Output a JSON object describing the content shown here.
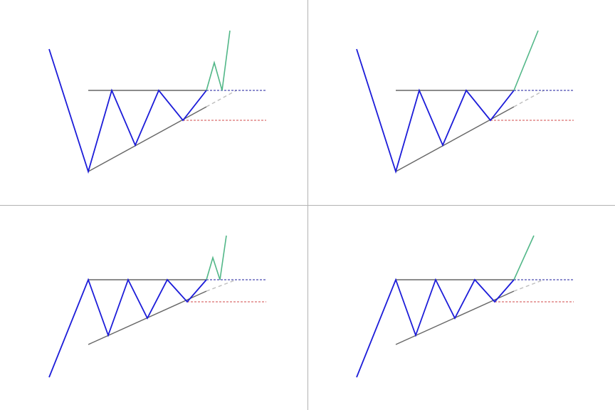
{
  "colors": {
    "background": "#ffffff",
    "panel_divider": "#b3b3b3",
    "price_path": "#1c1cd9",
    "breakout_path": "#52b788",
    "resistance_line": "#666666",
    "support_line": "#666666",
    "support_projection": "#bdbdbd",
    "breakout_level": "#1c1c9e",
    "stop_level": "#d04848"
  },
  "panels": [
    {
      "id": "top-left",
      "trend_before": "downtrend",
      "breakout_style": "retest",
      "path": [
        [
          69,
          69
        ],
        [
          124,
          241
        ],
        [
          157,
          127
        ],
        [
          190,
          204
        ],
        [
          223,
          127
        ],
        [
          257,
          169
        ],
        [
          290,
          127
        ]
      ],
      "breakout": [
        [
          290,
          127
        ],
        [
          301,
          88
        ],
        [
          312,
          127
        ],
        [
          323,
          43
        ]
      ],
      "resistance": [
        [
          124,
          127
        ],
        [
          290,
          127
        ]
      ],
      "support": [
        [
          124,
          241
        ],
        [
          290,
          150
        ]
      ],
      "support_projection": [
        [
          290,
          150
        ],
        [
          332,
          127
        ]
      ],
      "breakout_level": [
        [
          290,
          127
        ],
        [
          374,
          127
        ]
      ],
      "stop_level": [
        [
          257,
          169
        ],
        [
          374,
          169
        ]
      ]
    },
    {
      "id": "top-right",
      "trend_before": "downtrend",
      "breakout_style": "direct",
      "path": [
        [
          501,
          69
        ],
        [
          556,
          241
        ],
        [
          589,
          127
        ],
        [
          622,
          204
        ],
        [
          655,
          127
        ],
        [
          689,
          169
        ],
        [
          722,
          127
        ]
      ],
      "breakout": [
        [
          722,
          127
        ],
        [
          756,
          43
        ]
      ],
      "resistance": [
        [
          556,
          127
        ],
        [
          722,
          127
        ]
      ],
      "support": [
        [
          556,
          241
        ],
        [
          722,
          150
        ]
      ],
      "support_projection": [
        [
          722,
          150
        ],
        [
          764,
          127
        ]
      ],
      "breakout_level": [
        [
          722,
          127
        ],
        [
          806,
          127
        ]
      ],
      "stop_level": [
        [
          689,
          169
        ],
        [
          806,
          169
        ]
      ]
    },
    {
      "id": "bottom-left",
      "trend_before": "uptrend",
      "breakout_style": "retest",
      "path": [
        [
          69,
          530
        ],
        [
          124,
          393
        ],
        [
          152,
          471
        ],
        [
          180,
          393
        ],
        [
          207,
          447
        ],
        [
          235,
          393
        ],
        [
          263,
          424
        ],
        [
          290,
          393
        ]
      ],
      "breakout": [
        [
          290,
          393
        ],
        [
          299,
          362
        ],
        [
          309,
          393
        ],
        [
          318,
          331
        ]
      ],
      "resistance": [
        [
          124,
          393
        ],
        [
          290,
          393
        ]
      ],
      "support": [
        [
          124,
          484
        ],
        [
          290,
          409
        ]
      ],
      "support_projection": [
        [
          290,
          409
        ],
        [
          332,
          393
        ]
      ],
      "breakout_level": [
        [
          290,
          393
        ],
        [
          374,
          393
        ]
      ],
      "stop_level": [
        [
          263,
          424
        ],
        [
          374,
          424
        ]
      ]
    },
    {
      "id": "bottom-right",
      "trend_before": "uptrend",
      "breakout_style": "direct",
      "path": [
        [
          501,
          530
        ],
        [
          556,
          393
        ],
        [
          584,
          471
        ],
        [
          612,
          393
        ],
        [
          639,
          447
        ],
        [
          667,
          393
        ],
        [
          695,
          424
        ],
        [
          722,
          393
        ]
      ],
      "breakout": [
        [
          722,
          393
        ],
        [
          750,
          331
        ]
      ],
      "resistance": [
        [
          556,
          393
        ],
        [
          722,
          393
        ]
      ],
      "support": [
        [
          556,
          484
        ],
        [
          722,
          409
        ]
      ],
      "support_projection": [
        [
          722,
          409
        ],
        [
          764,
          393
        ]
      ],
      "breakout_level": [
        [
          722,
          393
        ],
        [
          806,
          393
        ]
      ],
      "stop_level": [
        [
          695,
          424
        ],
        [
          806,
          424
        ]
      ]
    }
  ]
}
